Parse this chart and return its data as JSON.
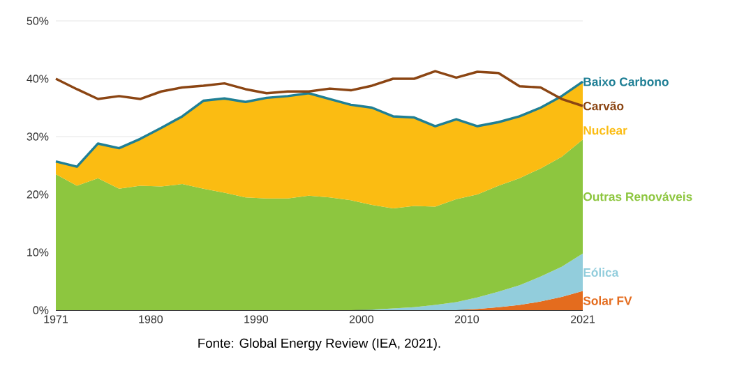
{
  "chart_data": {
    "type": "area",
    "stacked": true,
    "grid": "y",
    "x": [
      1971,
      1973,
      1975,
      1977,
      1979,
      1981,
      1983,
      1985,
      1987,
      1989,
      1991,
      1993,
      1995,
      1997,
      1999,
      2001,
      2003,
      2005,
      2007,
      2009,
      2011,
      2013,
      2015,
      2017,
      2019,
      2021
    ],
    "series": [
      {
        "name": "Solar FV",
        "color": "#e46c1e",
        "values": [
          0,
          0,
          0,
          0,
          0,
          0,
          0,
          0,
          0,
          0,
          0,
          0,
          0,
          0,
          0,
          0,
          0,
          0,
          0,
          0,
          0.2,
          0.5,
          0.9,
          1.5,
          2.3,
          3.3
        ]
      },
      {
        "name": "Eólica",
        "color": "#92cddc",
        "values": [
          0,
          0,
          0,
          0,
          0,
          0,
          0,
          0,
          0,
          0,
          0,
          0,
          0,
          0,
          0,
          0.1,
          0.3,
          0.5,
          0.9,
          1.4,
          2.0,
          2.7,
          3.4,
          4.3,
          5.2,
          6.5
        ]
      },
      {
        "name": "Outras Renováveis",
        "color": "#8dc63f",
        "values": [
          23.5,
          21.5,
          22.8,
          21.0,
          21.5,
          21.4,
          21.8,
          21.0,
          20.3,
          19.5,
          19.3,
          19.3,
          19.8,
          19.5,
          19.0,
          18.1,
          17.3,
          17.5,
          17.0,
          17.8,
          17.8,
          18.3,
          18.5,
          18.7,
          19.0,
          19.7
        ]
      },
      {
        "name": "Nuclear",
        "color": "#fbbc12",
        "values": [
          2.2,
          3.3,
          6.0,
          7.0,
          8.1,
          10.1,
          11.7,
          15.2,
          16.3,
          16.5,
          17.4,
          17.7,
          17.7,
          17.0,
          16.5,
          16.8,
          15.9,
          15.3,
          13.9,
          13.8,
          11.8,
          11.0,
          10.7,
          10.5,
          10.5,
          10.0
        ]
      },
      {
        "name": "Baixo Carbono",
        "type": "line",
        "color": "#1f7f95",
        "values": [
          25.7,
          24.8,
          28.8,
          28.0,
          29.6,
          31.5,
          33.5,
          36.2,
          36.6,
          36.0,
          36.7,
          37.0,
          37.5,
          36.5,
          35.5,
          35.0,
          33.5,
          33.3,
          31.8,
          33.0,
          31.8,
          32.5,
          33.5,
          35.0,
          37.0,
          39.5
        ]
      },
      {
        "name": "Carvão",
        "type": "line",
        "color": "#8b4513",
        "values": [
          40.0,
          38.2,
          36.5,
          37.0,
          36.5,
          37.8,
          38.5,
          38.8,
          39.2,
          38.2,
          37.5,
          37.8,
          37.8,
          38.3,
          38.0,
          38.8,
          40.0,
          40.0,
          41.3,
          40.2,
          41.2,
          41.0,
          38.7,
          38.5,
          36.5,
          35.3
        ]
      }
    ],
    "xlim": [
      1971,
      2021
    ],
    "xticks": [
      1971,
      1980,
      1990,
      2000,
      2010,
      2021
    ],
    "ylim": [
      0,
      50
    ],
    "yticks": [
      {
        "value": 0,
        "label": "0%"
      },
      {
        "value": 10,
        "label": "10%"
      },
      {
        "value": 20,
        "label": "20%"
      },
      {
        "value": 30,
        "label": "30%"
      },
      {
        "value": 40,
        "label": "40%"
      },
      {
        "value": 50,
        "label": "50%"
      }
    ],
    "annotations": [
      "Fonte: Global Energy Review (IEA, 2021)."
    ]
  }
}
